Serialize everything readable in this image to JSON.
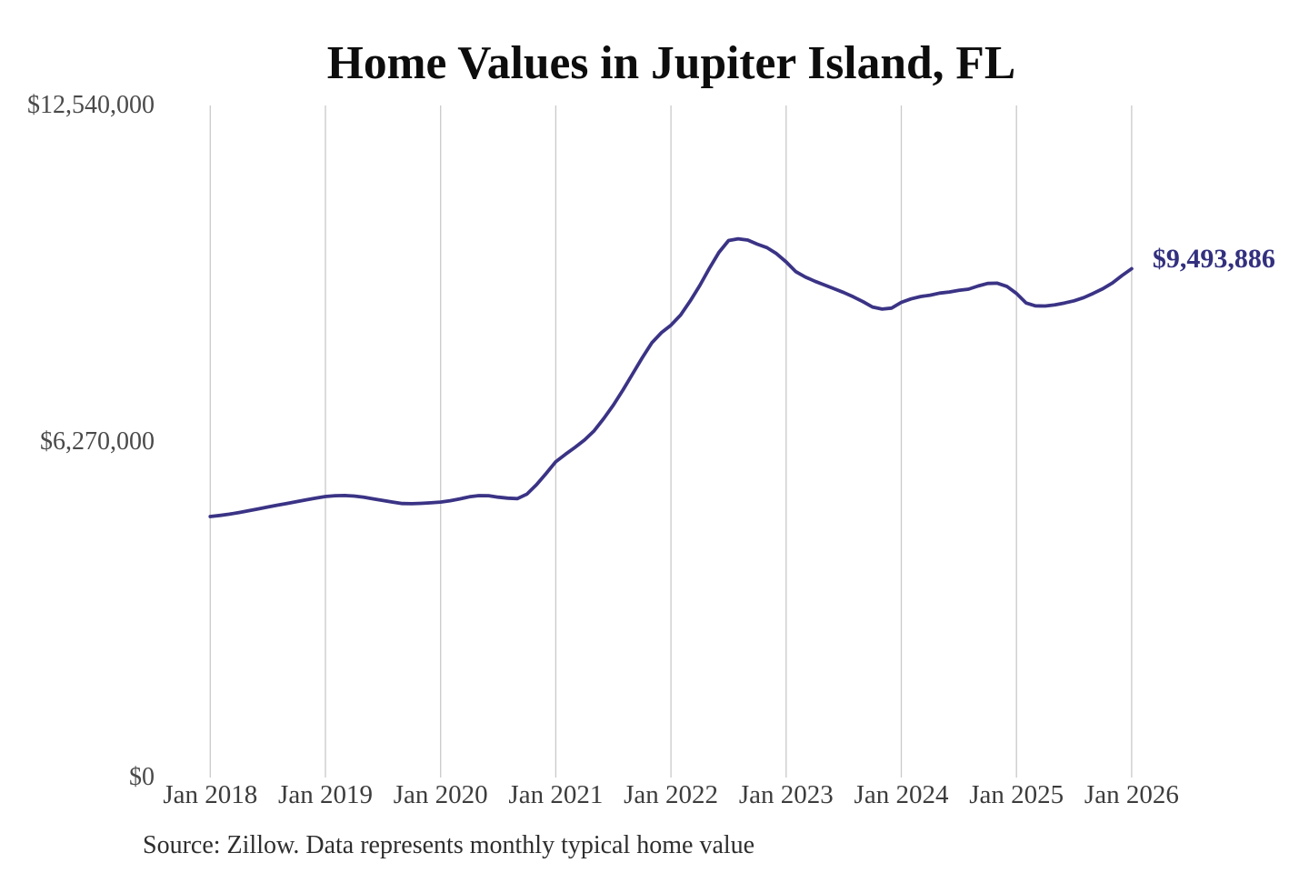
{
  "chart_data": {
    "type": "line",
    "title": "Home Values in Jupiter Island, FL",
    "source_note": "Source: Zillow. Data represents monthly typical home value",
    "end_label": "$9,493,886",
    "end_value": 9493886,
    "line_color": "#3a3385",
    "end_label_color": "#33307e",
    "grid_color": "#c9c9c9",
    "background_color": "#ffffff",
    "ylim": [
      0,
      12540000
    ],
    "y_ticks": [
      {
        "label": "$12,540,000",
        "value": 12540000
      },
      {
        "label": "$6,270,000",
        "value": 6270000
      },
      {
        "label": "$0",
        "value": 0
      }
    ],
    "x_tick_labels": [
      "Jan 2018",
      "Jan 2019",
      "Jan 2020",
      "Jan 2021",
      "Jan 2022",
      "Jan 2023",
      "Jan 2024",
      "Jan 2025",
      "Jan 2026"
    ],
    "x_start": "2018-01",
    "x_end": "2026-01",
    "x_interval": "month",
    "grid": "vertical-only",
    "legend": "none",
    "values": [
      4870000,
      4890000,
      4915000,
      4945000,
      4978000,
      5012000,
      5048000,
      5082000,
      5115000,
      5148000,
      5182000,
      5215000,
      5243000,
      5258000,
      5262000,
      5252000,
      5230000,
      5200000,
      5168000,
      5140000,
      5112000,
      5110000,
      5116000,
      5126000,
      5140000,
      5165000,
      5200000,
      5238000,
      5260000,
      5258000,
      5232000,
      5212000,
      5205000,
      5290000,
      5465000,
      5675000,
      5893000,
      6030000,
      6160000,
      6300000,
      6470000,
      6700000,
      6950000,
      7230000,
      7530000,
      7830000,
      8110000,
      8300000,
      8441000,
      8630000,
      8890000,
      9180000,
      9500000,
      9800000,
      10020000,
      10052000,
      10028000,
      9952000,
      9888000,
      9775000,
      9622000,
      9440000,
      9340000,
      9260000,
      9190000,
      9120000,
      9050000,
      8970000,
      8880000,
      8780000,
      8740000,
      8760000,
      8866000,
      8930000,
      8975000,
      9000000,
      9040000,
      9060000,
      9090000,
      9112000,
      9172000,
      9220000,
      9224000,
      9165000,
      9032000,
      8855000,
      8800000,
      8798000,
      8820000,
      8855000,
      8895000,
      8955000,
      9035000,
      9120000,
      9230000,
      9366000,
      9493886
    ]
  }
}
